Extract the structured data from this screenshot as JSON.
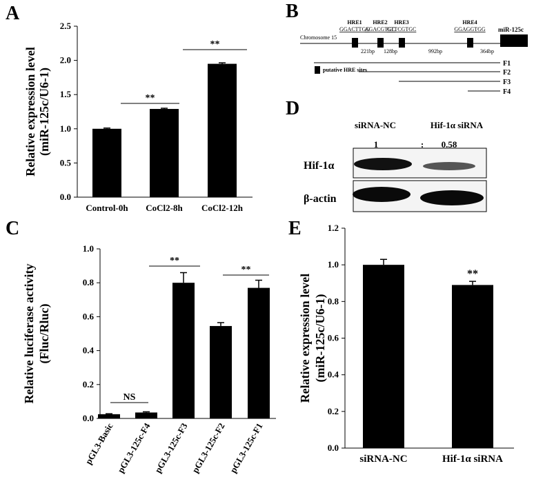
{
  "chart_data": [
    {
      "type": "bar",
      "panel": "A",
      "ylabel": [
        "Relative expression level",
        "(miR-125c/U6-1)"
      ],
      "categories": [
        "Control-0h",
        "CoCl2-8h",
        "CoCl2-12h"
      ],
      "values": [
        1.0,
        1.29,
        1.95
      ],
      "errors": [
        0.01,
        0.01,
        0.015
      ],
      "color": "#000000",
      "ylim": [
        0,
        2.5
      ],
      "yticks": [
        {
          "value": 0,
          "label": "0.0"
        },
        0.5,
        {
          "value": 1,
          "label": "1.0"
        },
        1.5,
        {
          "value": 2,
          "label": "2.0"
        },
        2.5
      ],
      "annotations": [
        "**",
        "**"
      ]
    },
    {
      "type": "bar",
      "panel": "C",
      "ylabel": [
        "Relative luciferase activity",
        "(Fluc/Rluc)"
      ],
      "categories": [
        "pGL3-Basic",
        "pGL3-125c-F4",
        "pGL3-125c-F3",
        "pGL3-125c-F2",
        "pGL3-125c-F1"
      ],
      "values": [
        0.025,
        0.035,
        0.8,
        0.545,
        0.77
      ],
      "errors": [
        0.003,
        0.004,
        0.06,
        0.02,
        0.045
      ],
      "color": "#000000",
      "ylim": [
        0,
        1
      ],
      "yticks": [
        {
          "value": 0,
          "label": "0.0"
        },
        0.2,
        0.4,
        0.6,
        0.8,
        {
          "value": 1,
          "label": "1.0"
        }
      ],
      "annotations": [
        "NS",
        "**",
        "**"
      ]
    },
    {
      "type": "bar",
      "panel": "E",
      "ylabel": [
        "Relative expression level",
        "(miR-125c/U6-1)"
      ],
      "categories": [
        "siRNA-NC",
        "Hif-1α siRNA"
      ],
      "values": [
        1.0,
        0.89
      ],
      "errors": [
        0.03,
        0.02
      ],
      "color": "#000000",
      "ylim": [
        0,
        1.2
      ],
      "yticks": [
        {
          "value": 0,
          "label": "0.0"
        },
        0.2,
        0.4,
        0.6,
        0.8,
        {
          "value": 1,
          "label": "1.0"
        },
        1.2
      ],
      "annotations": [
        "**"
      ]
    }
  ],
  "diagram": {
    "panel": "B",
    "chromosome": "Chromosome 15",
    "gene": "miR-125c",
    "hres": [
      {
        "name": "HRE1",
        "seq": "GGACTTGG"
      },
      {
        "name": "HRE2",
        "seq": "AGACGTGC"
      },
      {
        "name": "HRE3",
        "seq": "GTTCGTGC"
      },
      {
        "name": "HRE4",
        "seq": "GGAGGTGG"
      }
    ],
    "distances": [
      "221bp",
      "128bp",
      "992bp",
      "364bp"
    ],
    "legend": "putative HRE sites",
    "fragments": [
      "F1",
      "F2",
      "F3",
      "F4"
    ]
  },
  "blot": {
    "panel": "D",
    "lanes": [
      "siRNA-NC",
      "Hif-1α siRNA"
    ],
    "ratio": [
      "1",
      ":",
      "0.58"
    ],
    "rows": [
      "Hif-1α",
      "β-actin"
    ]
  }
}
